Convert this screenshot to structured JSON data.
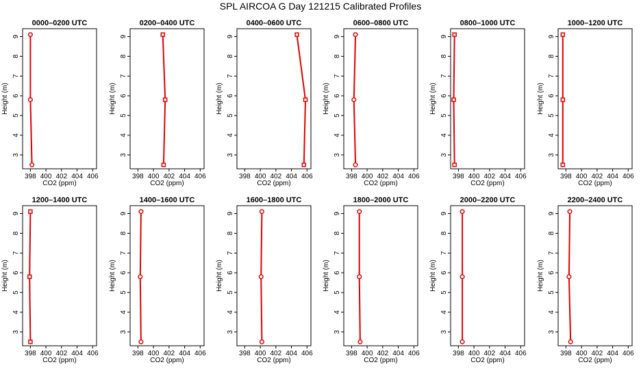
{
  "figure": {
    "title": "SPL AIRCOA G  Day 121215  Calibrated Profiles",
    "line_color": "#dd0000",
    "marker_color": "#dd0000"
  },
  "chart_data": [
    {
      "type": "line",
      "title": "0000–0200 UTC",
      "xlabel": "CO2 (ppm)",
      "ylabel": "Height (m)",
      "xlim": [
        397,
        406.5
      ],
      "ylim": [
        2.3,
        9.4
      ],
      "xticks": [
        398,
        400,
        402,
        404,
        406
      ],
      "yticks": [
        3,
        4,
        5,
        6,
        7,
        8,
        9
      ],
      "series": [
        {
          "marker": "circle",
          "points": [
            {
              "x": 398.0,
              "y": 9.1
            },
            {
              "x": 398.0,
              "y": 5.8
            },
            {
              "x": 398.2,
              "y": 2.5
            }
          ]
        }
      ]
    },
    {
      "type": "line",
      "title": "0200–0400 UTC",
      "xlabel": "CO2 (ppm)",
      "ylabel": "Height (m)",
      "xlim": [
        397,
        406.5
      ],
      "ylim": [
        2.3,
        9.4
      ],
      "xticks": [
        398,
        400,
        402,
        404,
        406
      ],
      "yticks": [
        3,
        4,
        5,
        6,
        7,
        8,
        9
      ],
      "series": [
        {
          "marker": "square",
          "points": [
            {
              "x": 401.2,
              "y": 9.1
            },
            {
              "x": 401.5,
              "y": 5.8
            },
            {
              "x": 401.3,
              "y": 2.5
            }
          ]
        }
      ]
    },
    {
      "type": "line",
      "title": "0400–0600 UTC",
      "xlabel": "CO2 (ppm)",
      "ylabel": "Height (m)",
      "xlim": [
        397,
        406.5
      ],
      "ylim": [
        2.3,
        9.4
      ],
      "xticks": [
        398,
        400,
        402,
        404,
        406
      ],
      "yticks": [
        3,
        4,
        5,
        6,
        7,
        8,
        9
      ],
      "series": [
        {
          "marker": "square",
          "points": [
            {
              "x": 404.7,
              "y": 9.1
            },
            {
              "x": 405.8,
              "y": 5.8
            },
            {
              "x": 405.6,
              "y": 2.5
            }
          ]
        }
      ]
    },
    {
      "type": "line",
      "title": "0600–0800 UTC",
      "xlabel": "CO2 (ppm)",
      "ylabel": "Height (m)",
      "xlim": [
        397,
        406.5
      ],
      "ylim": [
        2.3,
        9.4
      ],
      "xticks": [
        398,
        400,
        402,
        404,
        406
      ],
      "yticks": [
        3,
        4,
        5,
        6,
        7,
        8,
        9
      ],
      "series": [
        {
          "marker": "circle",
          "points": [
            {
              "x": 398.5,
              "y": 9.1
            },
            {
              "x": 398.3,
              "y": 5.8
            },
            {
              "x": 398.5,
              "y": 2.5
            }
          ]
        }
      ]
    },
    {
      "type": "line",
      "title": "0800–1000 UTC",
      "xlabel": "CO2 (ppm)",
      "ylabel": "Height (m)",
      "xlim": [
        397,
        406.5
      ],
      "ylim": [
        2.3,
        9.4
      ],
      "xticks": [
        398,
        400,
        402,
        404,
        406
      ],
      "yticks": [
        3,
        4,
        5,
        6,
        7,
        8,
        9
      ],
      "series": [
        {
          "marker": "square",
          "points": [
            {
              "x": 397.5,
              "y": 9.1
            },
            {
              "x": 397.4,
              "y": 5.8
            },
            {
              "x": 397.5,
              "y": 2.5
            }
          ]
        }
      ]
    },
    {
      "type": "line",
      "title": "1000–1200 UTC",
      "xlabel": "CO2 (ppm)",
      "ylabel": "Height (m)",
      "xlim": [
        397,
        406.5
      ],
      "ylim": [
        2.3,
        9.4
      ],
      "xticks": [
        398,
        400,
        402,
        404,
        406
      ],
      "yticks": [
        3,
        4,
        5,
        6,
        7,
        8,
        9
      ],
      "series": [
        {
          "marker": "square",
          "points": [
            {
              "x": 397.6,
              "y": 9.1
            },
            {
              "x": 397.6,
              "y": 5.8
            },
            {
              "x": 397.6,
              "y": 2.5
            }
          ]
        }
      ]
    },
    {
      "type": "line",
      "title": "1200–1400 UTC",
      "xlabel": "CO2 (ppm)",
      "ylabel": "Height (m)",
      "xlim": [
        397,
        406.5
      ],
      "ylim": [
        2.3,
        9.4
      ],
      "xticks": [
        398,
        400,
        402,
        404,
        406
      ],
      "yticks": [
        3,
        4,
        5,
        6,
        7,
        8,
        9
      ],
      "series": [
        {
          "marker": "square",
          "points": [
            {
              "x": 398.0,
              "y": 9.1
            },
            {
              "x": 397.9,
              "y": 5.8
            },
            {
              "x": 398.0,
              "y": 2.5
            }
          ]
        }
      ]
    },
    {
      "type": "line",
      "title": "1400–1600 UTC",
      "xlabel": "CO2 (ppm)",
      "ylabel": "Height (m)",
      "xlim": [
        397,
        406.5
      ],
      "ylim": [
        2.3,
        9.4
      ],
      "xticks": [
        398,
        400,
        402,
        404,
        406
      ],
      "yticks": [
        3,
        4,
        5,
        6,
        7,
        8,
        9
      ],
      "series": [
        {
          "marker": "circle",
          "points": [
            {
              "x": 398.4,
              "y": 9.1
            },
            {
              "x": 398.3,
              "y": 5.8
            },
            {
              "x": 398.4,
              "y": 2.5
            }
          ]
        }
      ]
    },
    {
      "type": "line",
      "title": "1600–1800 UTC",
      "xlabel": "CO2 (ppm)",
      "ylabel": "Height (m)",
      "xlim": [
        397,
        406.5
      ],
      "ylim": [
        2.3,
        9.4
      ],
      "xticks": [
        398,
        400,
        402,
        404,
        406
      ],
      "yticks": [
        3,
        4,
        5,
        6,
        7,
        8,
        9
      ],
      "series": [
        {
          "marker": "circle",
          "points": [
            {
              "x": 400.2,
              "y": 9.1
            },
            {
              "x": 400.1,
              "y": 5.8
            },
            {
              "x": 400.2,
              "y": 2.5
            }
          ]
        }
      ]
    },
    {
      "type": "line",
      "title": "1800–2000 UTC",
      "xlabel": "CO2 (ppm)",
      "ylabel": "Height (m)",
      "xlim": [
        397,
        406.5
      ],
      "ylim": [
        2.3,
        9.4
      ],
      "xticks": [
        398,
        400,
        402,
        404,
        406
      ],
      "yticks": [
        3,
        4,
        5,
        6,
        7,
        8,
        9
      ],
      "series": [
        {
          "marker": "circle",
          "points": [
            {
              "x": 399.0,
              "y": 9.1
            },
            {
              "x": 399.0,
              "y": 5.8
            },
            {
              "x": 399.1,
              "y": 2.5
            }
          ]
        }
      ]
    },
    {
      "type": "line",
      "title": "2000–2200 UTC",
      "xlabel": "CO2 (ppm)",
      "ylabel": "Height (m)",
      "xlim": [
        397,
        406.5
      ],
      "ylim": [
        2.3,
        9.4
      ],
      "xticks": [
        398,
        400,
        402,
        404,
        406
      ],
      "yticks": [
        3,
        4,
        5,
        6,
        7,
        8,
        9
      ],
      "series": [
        {
          "marker": "circle",
          "points": [
            {
              "x": 398.5,
              "y": 9.1
            },
            {
              "x": 398.5,
              "y": 5.8
            },
            {
              "x": 398.5,
              "y": 2.5
            }
          ]
        }
      ]
    },
    {
      "type": "line",
      "title": "2200–2400 UTC",
      "xlabel": "CO2 (ppm)",
      "ylabel": "Height (m)",
      "xlim": [
        397,
        406.5
      ],
      "ylim": [
        2.3,
        9.4
      ],
      "xticks": [
        398,
        400,
        402,
        404,
        406
      ],
      "yticks": [
        3,
        4,
        5,
        6,
        7,
        8,
        9
      ],
      "series": [
        {
          "marker": "circle",
          "points": [
            {
              "x": 398.5,
              "y": 9.1
            },
            {
              "x": 398.4,
              "y": 5.8
            },
            {
              "x": 398.6,
              "y": 2.5
            }
          ]
        }
      ]
    }
  ]
}
